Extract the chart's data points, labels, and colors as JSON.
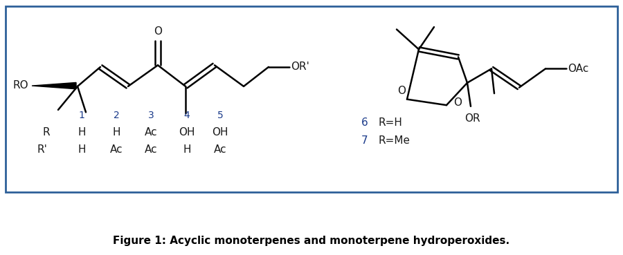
{
  "figure_caption": "Figure 1: Acyclic monoterpenes and monoterpene hydroperoxides.",
  "caption_fontsize": 11,
  "border_color": "#2E6099",
  "background_color": "#FFFFFF",
  "text_color": "#1a1a1a",
  "blue_color": "#1a3a8a",
  "table_numbers": [
    "1",
    "2",
    "3",
    "4",
    "5"
  ],
  "table_R_row": [
    "H",
    "H",
    "Ac",
    "OH",
    "OH"
  ],
  "table_Rp_row": [
    "H",
    "Ac",
    "Ac",
    "H",
    "Ac"
  ],
  "lw": 1.8
}
